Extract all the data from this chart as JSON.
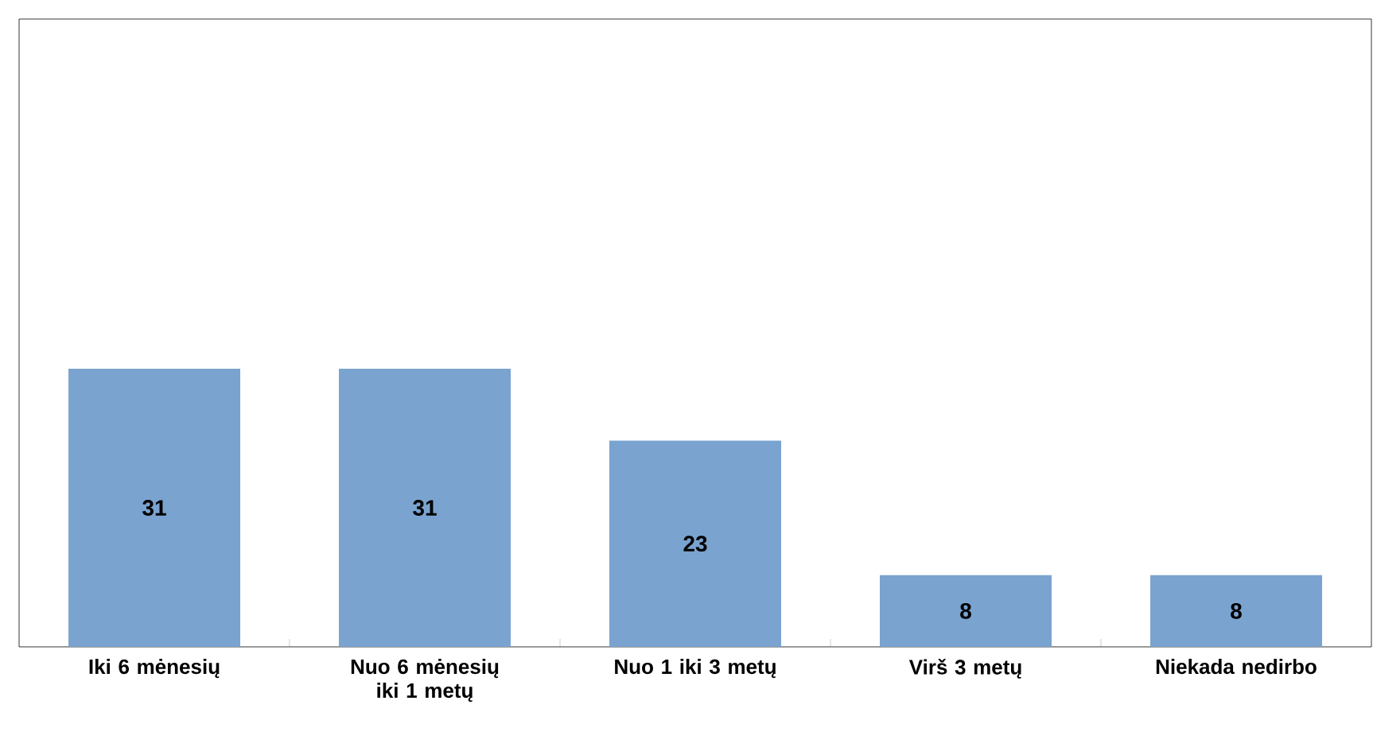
{
  "chart_data": {
    "type": "bar",
    "categories": [
      "Iki 6 mėnesių",
      "Nuo 6 mėnesių iki 1 metų",
      "Nuo 1 iki 3 metų",
      "Virš 3 metų",
      "Niekada nedirbo"
    ],
    "values": [
      31,
      31,
      23,
      8,
      8
    ],
    "color": "#7aa3cf",
    "ylim": [
      0,
      70
    ],
    "tick_labels": "x",
    "data_labels": true
  }
}
